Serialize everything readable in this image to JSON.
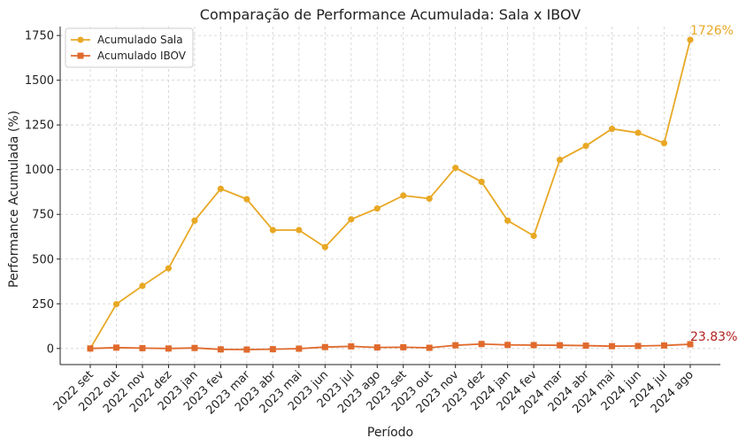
{
  "chart_data": {
    "type": "line",
    "title": "Comparação de Performance Acumulada: Sala x IBOV",
    "xlabel": "Período",
    "ylabel": "Performance Acumulada (%)",
    "ylim": [
      -90,
      1800
    ],
    "yticks": [
      0,
      250,
      500,
      750,
      1000,
      1250,
      1500,
      1750
    ],
    "grid": true,
    "legend_position": "top-left",
    "categories": [
      "2022 set",
      "2022 out",
      "2022 nov",
      "2022 dez",
      "2023 jan",
      "2023 fev",
      "2023 mar",
      "2023 abr",
      "2023 mai",
      "2023 jun",
      "2023 jul",
      "2023 ago",
      "2023 set",
      "2023 out",
      "2023 nov",
      "2023 dez",
      "2024 jan",
      "2024 fev",
      "2024 mar",
      "2024 abr",
      "2024 mai",
      "2024 jun",
      "2024 jul",
      "2024 ago"
    ],
    "series": [
      {
        "name": "Acumulado Sala",
        "color": "#E8A824",
        "marker": "circle",
        "values": [
          0,
          248,
          350,
          448,
          715,
          893,
          835,
          662,
          662,
          567,
          722,
          783,
          855,
          838,
          1010,
          932,
          715,
          630,
          1055,
          1133,
          1228,
          1206,
          1148,
          1726
        ],
        "end_label": "1726%"
      },
      {
        "name": "Acumulado IBOV",
        "color": "#E06A2C",
        "marker": "square",
        "values": [
          0,
          5,
          2,
          0,
          3,
          -5,
          -6,
          -4,
          -1,
          8,
          12,
          6,
          7,
          4,
          18,
          25,
          20,
          19,
          18,
          16,
          13,
          14,
          17,
          23.83
        ],
        "end_label": "23.83%",
        "end_label_color": "#B22222"
      }
    ]
  }
}
